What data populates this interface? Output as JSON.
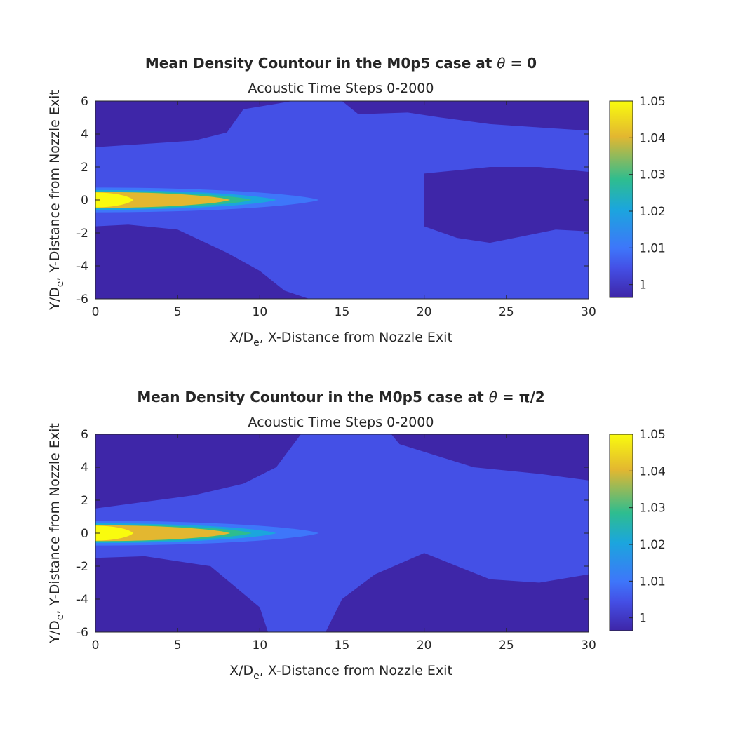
{
  "figure": {
    "colors": {
      "c_low": "#3e26a8",
      "c_1005": "#4450e6",
      "c_101": "#3e76fa",
      "c_102": "#1ba6dd",
      "c_103": "#2ebd8f",
      "c_104": "#e3b730",
      "c_105": "#f9fb0e"
    }
  },
  "chart_data": [
    {
      "type": "heatmap",
      "title_prefix": "Mean Density Countour in the M0p5 case at ",
      "title_symbol": "θ",
      "title_suffix": " = 0",
      "subtitle": "Acoustic Time Steps 0-2000",
      "xlabel_main": "X/D",
      "xlabel_sub": "e",
      "xlabel_rest": ", X-Distance from Nozzle Exit",
      "ylabel_main": "Y/D",
      "ylabel_sub": "e",
      "ylabel_rest": ", Y-Distance from Nozzle Exit",
      "xlim": [
        0,
        30
      ],
      "ylim": [
        -6,
        6
      ],
      "xticks": [
        "0",
        "5",
        "10",
        "15",
        "20",
        "25",
        "30"
      ],
      "yticks": [
        "-6",
        "-4",
        "-2",
        "0",
        "2",
        "4",
        "6"
      ],
      "colorbar": {
        "clim": [
          0.9965,
          1.05
        ],
        "ticks": [
          "1",
          "1.01",
          "1.02",
          "1.03",
          "1.04",
          "1.05"
        ]
      },
      "core": {
        "levels": [
          {
            "value": 1.005,
            "x_end": 19.6,
            "half_width": 1.0
          },
          {
            "value": 1.01,
            "x_end": 13.6,
            "half_width": 0.75
          },
          {
            "value": 1.02,
            "x_end": 11.0,
            "half_width": 0.6
          },
          {
            "value": 1.03,
            "x_end": 9.5,
            "half_width": 0.52
          },
          {
            "value": 1.04,
            "x_end": 8.2,
            "half_width": 0.48
          },
          {
            "value": 1.05,
            "x_end": 2.3,
            "half_width": 0.45
          }
        ]
      },
      "mid_region": {
        "value": 1.005,
        "upper": [
          [
            0,
            3.2
          ],
          [
            3,
            3.4
          ],
          [
            6,
            3.6
          ],
          [
            8,
            4.1
          ],
          [
            9,
            5.5
          ],
          [
            12,
            6
          ],
          [
            15,
            6
          ],
          [
            16,
            5.2
          ],
          [
            19,
            5.3
          ],
          [
            21,
            5
          ],
          [
            24,
            4.6
          ],
          [
            27,
            4.4
          ],
          [
            30,
            4.2
          ],
          [
            30,
            1.7
          ],
          [
            27,
            2.0
          ],
          [
            24,
            2.0
          ],
          [
            22,
            1.8
          ],
          [
            20,
            1.6
          ]
        ],
        "lower": [
          [
            20,
            -1.6
          ],
          [
            22,
            -2.3
          ],
          [
            24,
            -2.6
          ],
          [
            26,
            -2.2
          ],
          [
            28,
            -1.8
          ],
          [
            30,
            -1.9
          ],
          [
            30,
            -6
          ],
          [
            13,
            -6
          ],
          [
            11.5,
            -5.5
          ],
          [
            10,
            -4.3
          ],
          [
            8,
            -3.2
          ],
          [
            5,
            -1.8
          ],
          [
            2,
            -1.5
          ],
          [
            0,
            -1.6
          ]
        ]
      }
    },
    {
      "type": "heatmap",
      "title_prefix": "Mean Density Countour in the M0p5 case at ",
      "title_symbol": "θ",
      "title_suffix": " = π/2",
      "subtitle": "Acoustic Time Steps 0-2000",
      "xlabel_main": "X/D",
      "xlabel_sub": "e",
      "xlabel_rest": ", X-Distance from Nozzle Exit",
      "ylabel_main": "Y/D",
      "ylabel_sub": "e",
      "ylabel_rest": ", Y-Distance from Nozzle Exit",
      "xlim": [
        0,
        30
      ],
      "ylim": [
        -6,
        6
      ],
      "xticks": [
        "0",
        "5",
        "10",
        "15",
        "20",
        "25",
        "30"
      ],
      "yticks": [
        "-6",
        "-4",
        "-2",
        "0",
        "2",
        "4",
        "6"
      ],
      "colorbar": {
        "clim": [
          0.9965,
          1.05
        ],
        "ticks": [
          "1",
          "1.01",
          "1.02",
          "1.03",
          "1.04",
          "1.05"
        ]
      },
      "core": {
        "levels": [
          {
            "value": 1.005,
            "x_end": 19.6,
            "half_width": 1.0
          },
          {
            "value": 1.01,
            "x_end": 13.6,
            "half_width": 0.75
          },
          {
            "value": 1.02,
            "x_end": 11.0,
            "half_width": 0.6
          },
          {
            "value": 1.03,
            "x_end": 9.5,
            "half_width": 0.52
          },
          {
            "value": 1.04,
            "x_end": 8.2,
            "half_width": 0.48
          },
          {
            "value": 1.05,
            "x_end": 2.3,
            "half_width": 0.45
          }
        ]
      },
      "mid_region": {
        "value": 1.005,
        "upper": [
          [
            0,
            1.5
          ],
          [
            3,
            1.9
          ],
          [
            6,
            2.3
          ],
          [
            9,
            3.0
          ],
          [
            11,
            4.0
          ],
          [
            12.5,
            6
          ],
          [
            18,
            6
          ],
          [
            18.5,
            5.4
          ],
          [
            23,
            4.0
          ],
          [
            27,
            3.6
          ],
          [
            30,
            3.2
          ],
          [
            30,
            -2.5
          ],
          [
            27,
            -3.0
          ],
          [
            24,
            -2.8
          ],
          [
            22,
            -2.0
          ],
          [
            20,
            -1.2
          ]
        ],
        "lower": [
          [
            20,
            -1.2
          ],
          [
            17,
            -2.5
          ],
          [
            15,
            -4.0
          ],
          [
            14,
            -6
          ],
          [
            10.5,
            -6
          ],
          [
            10,
            -4.5
          ],
          [
            7,
            -2.0
          ],
          [
            3,
            -1.4
          ],
          [
            0,
            -1.5
          ]
        ]
      }
    }
  ]
}
